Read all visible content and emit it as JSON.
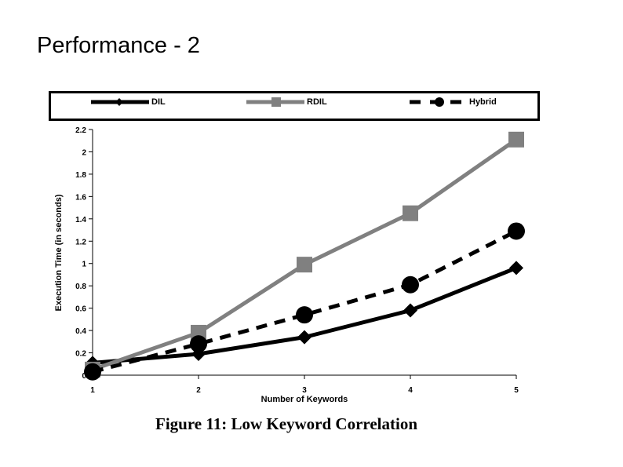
{
  "page": {
    "title": "Performance - 2",
    "caption": "Figure 11: Low Keyword Correlation"
  },
  "chart_data": {
    "type": "line",
    "x": [
      1,
      2,
      3,
      4,
      5
    ],
    "xlabel": "Number of Keywords",
    "ylabel": "Execution Time (in seconds)",
    "xlim": [
      1,
      5
    ],
    "ylim": [
      0,
      2.2
    ],
    "x_ticks": [
      "1",
      "2",
      "3",
      "4",
      "5"
    ],
    "y_ticks": [
      "0",
      "0.2",
      "0.4",
      "0.6",
      "0.8",
      "1",
      "1.2",
      "1.4",
      "1.6",
      "1.8",
      "2",
      "2.2"
    ],
    "grid": false,
    "legend_position": "top",
    "series": [
      {
        "name": "DIL",
        "values": [
          0.11,
          0.19,
          0.34,
          0.58,
          0.96
        ],
        "color": "#000000",
        "line_style": "solid",
        "marker": "diamond"
      },
      {
        "name": "RDIL",
        "values": [
          0.05,
          0.38,
          0.99,
          1.45,
          2.11
        ],
        "color": "#808080",
        "line_style": "solid",
        "marker": "square"
      },
      {
        "name": "Hybrid",
        "values": [
          0.03,
          0.28,
          0.54,
          0.81,
          1.29
        ],
        "color": "#000000",
        "line_style": "dashed",
        "marker": "circle"
      }
    ]
  }
}
